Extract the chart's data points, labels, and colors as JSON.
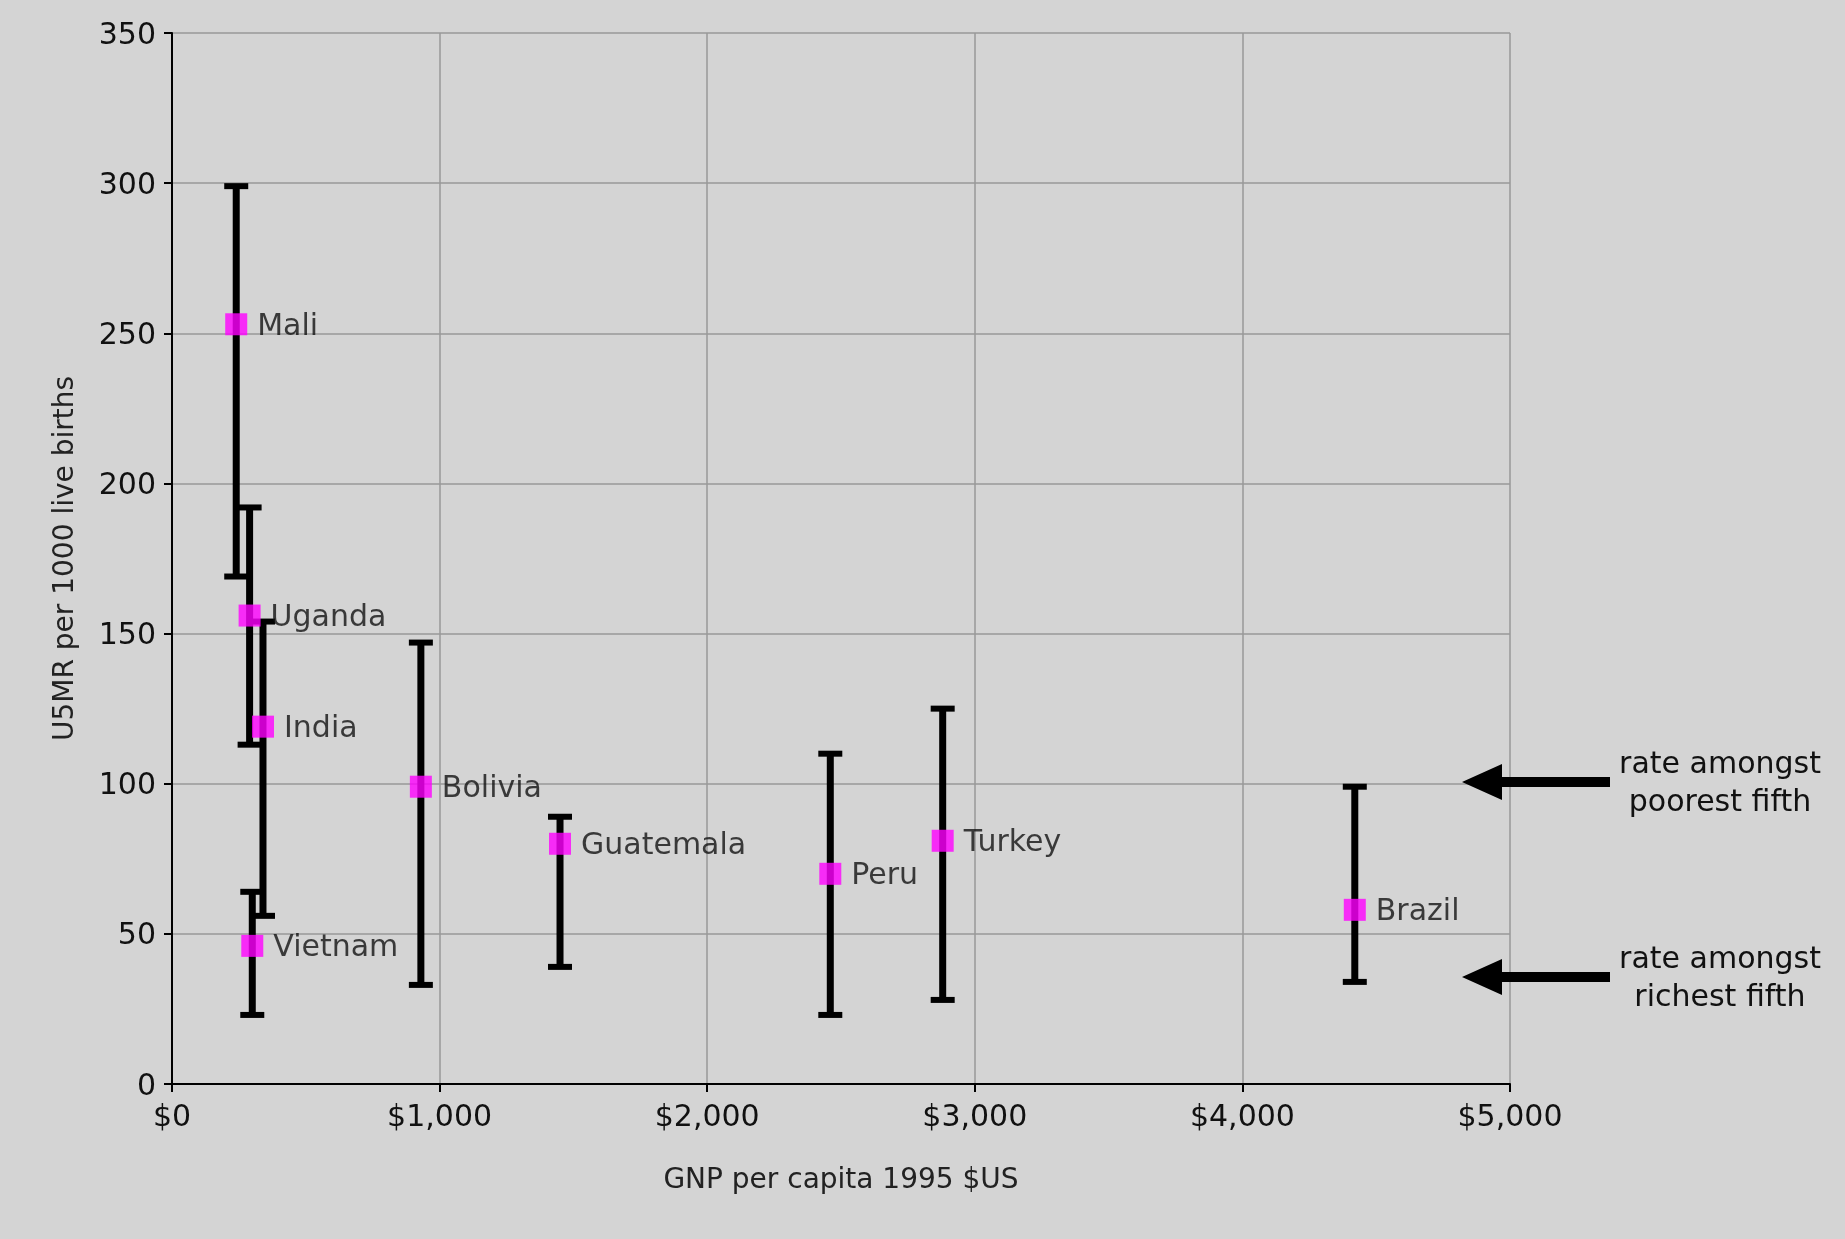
{
  "chart_data": {
    "type": "scatter",
    "xlabel": "GNP per capita 1995 $US",
    "ylabel": "U5MR per 1000 live births",
    "xlim": [
      0,
      5000
    ],
    "xticks": [
      {
        "value": 0,
        "label": "$0"
      },
      {
        "value": 1000,
        "label": "$1,000"
      },
      {
        "value": 2000,
        "label": "$2,000"
      },
      {
        "value": 3000,
        "label": "$3,000"
      },
      {
        "value": 4000,
        "label": "$4,000"
      },
      {
        "value": 5000,
        "label": "$5,000"
      }
    ],
    "ylim": [
      0,
      350
    ],
    "yticks": [
      0,
      50,
      100,
      150,
      200,
      250,
      300,
      350
    ],
    "grid": true,
    "legend": false,
    "marker": "square",
    "series": [
      {
        "name": "Mali",
        "color": "#ff00ff",
        "x": [
          240
        ],
        "values": [
          253
        ],
        "errors": [
          [
            169,
            299
          ]
        ]
      },
      {
        "name": "Uganda",
        "color": "#ff00ff",
        "x": [
          290
        ],
        "values": [
          156
        ],
        "errors": [
          [
            113,
            192
          ]
        ]
      },
      {
        "name": "India",
        "color": "#ff00ff",
        "x": [
          340
        ],
        "values": [
          119
        ],
        "errors": [
          [
            56,
            154
          ]
        ]
      },
      {
        "name": "Vietnam",
        "color": "#ff00ff",
        "x": [
          300
        ],
        "values": [
          46
        ],
        "errors": [
          [
            23,
            64
          ]
        ]
      },
      {
        "name": "Bolivia",
        "color": "#ff00ff",
        "x": [
          930
        ],
        "values": [
          99
        ],
        "errors": [
          [
            33,
            147
          ]
        ]
      },
      {
        "name": "Guatemala",
        "color": "#ff00ff",
        "x": [
          1450
        ],
        "values": [
          80
        ],
        "errors": [
          [
            39,
            89
          ]
        ]
      },
      {
        "name": "Peru",
        "color": "#ff00ff",
        "x": [
          2460
        ],
        "values": [
          70
        ],
        "errors": [
          [
            23,
            110
          ]
        ]
      },
      {
        "name": "Turkey",
        "color": "#ff00ff",
        "x": [
          2880
        ],
        "values": [
          81
        ],
        "errors": [
          [
            28,
            125
          ]
        ]
      },
      {
        "name": "Brazil",
        "color": "#ff00ff",
        "x": [
          4420
        ],
        "values": [
          58
        ],
        "errors": [
          [
            34,
            99
          ]
        ]
      }
    ],
    "annotations": [
      "rate amongst poorest fifth",
      "rate amongst richest fifth"
    ]
  }
}
